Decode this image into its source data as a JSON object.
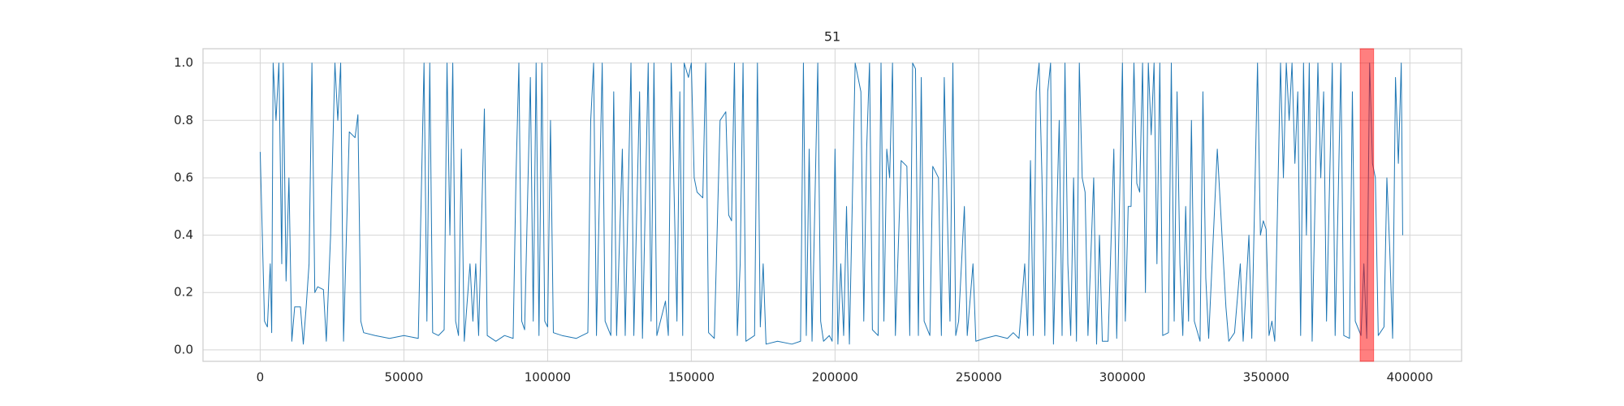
{
  "chart_data": {
    "type": "line",
    "title": "51",
    "x": [
      0,
      1500,
      2500,
      3500,
      4000,
      4500,
      5500,
      6500,
      7500,
      8000,
      9000,
      10000,
      11000,
      12000,
      14000,
      15000,
      16000,
      17000,
      18000,
      19000,
      20000,
      22000,
      23000,
      24500,
      26000,
      27000,
      28000,
      29000,
      30000,
      31000,
      33000,
      34000,
      35000,
      36000,
      40000,
      45000,
      50000,
      55000,
      57000,
      58000,
      59000,
      60000,
      62000,
      64000,
      65000,
      66000,
      67000,
      68000,
      69000,
      70000,
      71000,
      73000,
      74000,
      75000,
      76000,
      78000,
      79000,
      82000,
      85000,
      88000,
      89000,
      90000,
      91000,
      92000,
      94000,
      95000,
      96000,
      97000,
      98000,
      99000,
      100000,
      101000,
      102000,
      105000,
      110000,
      114000,
      115000,
      116000,
      117000,
      119000,
      120000,
      122000,
      123000,
      124000,
      126000,
      127000,
      129000,
      130000,
      132000,
      133000,
      135000,
      136000,
      137000,
      138000,
      141000,
      142000,
      143000,
      145000,
      146000,
      147000,
      147500,
      149000,
      150000,
      151000,
      152000,
      154000,
      155000,
      156000,
      158000,
      160000,
      162000,
      163000,
      164000,
      165000,
      166000,
      167000,
      168000,
      169000,
      172000,
      173000,
      174000,
      175000,
      176000,
      180000,
      185000,
      188000,
      189000,
      190000,
      191000,
      192000,
      194000,
      195000,
      196000,
      198000,
      199000,
      200000,
      201000,
      202000,
      203000,
      204000,
      205000,
      207000,
      209000,
      210000,
      211000,
      212000,
      213000,
      215000,
      216000,
      217000,
      218000,
      219000,
      220000,
      221000,
      223000,
      225000,
      226000,
      227000,
      228000,
      229000,
      230000,
      231000,
      233000,
      234000,
      236000,
      237000,
      238000,
      239000,
      240000,
      241000,
      242000,
      243000,
      245000,
      246000,
      248000,
      249000,
      252000,
      256000,
      260000,
      262000,
      264000,
      266000,
      267000,
      268000,
      269000,
      270000,
      271000,
      272000,
      273000,
      274000,
      275000,
      276000,
      278000,
      279000,
      280000,
      281000,
      282000,
      283000,
      284000,
      285000,
      286000,
      287000,
      288000,
      290000,
      291000,
      292000,
      293000,
      295000,
      297000,
      298000,
      300000,
      301000,
      302000,
      303000,
      304000,
      305000,
      306000,
      307000,
      308000,
      309000,
      310000,
      311000,
      312000,
      313000,
      314000,
      316000,
      317000,
      318000,
      319000,
      320000,
      321000,
      322000,
      323000,
      324000,
      325000,
      327000,
      328000,
      329000,
      330000,
      333000,
      336000,
      337000,
      339000,
      341000,
      342000,
      344000,
      345000,
      347000,
      348000,
      349000,
      350000,
      351000,
      352000,
      353000,
      355000,
      356000,
      357000,
      358000,
      359000,
      360000,
      361000,
      362000,
      363000,
      364000,
      365000,
      366000,
      368000,
      369000,
      370000,
      371000,
      373000,
      374000,
      375000,
      376000,
      377000,
      379000,
      380000,
      381000,
      383000,
      384000,
      385000,
      386000,
      387000,
      388000,
      389000,
      391000,
      392000,
      393000,
      394000,
      395000,
      396000,
      397000,
      397500
    ],
    "values": [
      0.69,
      0.1,
      0.08,
      0.3,
      0.06,
      1,
      0.8,
      1,
      0.3,
      1,
      0.24,
      0.6,
      0.03,
      0.15,
      0.15,
      0.02,
      0.15,
      0.3,
      1,
      0.2,
      0.22,
      0.21,
      0.03,
      0.4,
      1,
      0.8,
      1,
      0.03,
      0.4,
      0.76,
      0.74,
      0.82,
      0.1,
      0.06,
      0.05,
      0.04,
      0.05,
      0.04,
      1,
      0.1,
      1,
      0.06,
      0.05,
      0.07,
      1,
      0.4,
      1,
      0.1,
      0.05,
      0.7,
      0.03,
      0.3,
      0.1,
      0.3,
      0.05,
      0.84,
      0.05,
      0.03,
      0.05,
      0.04,
      0.6,
      1,
      0.1,
      0.07,
      0.95,
      0.1,
      1,
      0.05,
      1,
      0.1,
      0.08,
      0.8,
      0.06,
      0.05,
      0.04,
      0.06,
      0.8,
      1,
      0.05,
      1,
      0.1,
      0.05,
      0.9,
      0.05,
      0.7,
      0.05,
      1,
      0.05,
      0.9,
      0.04,
      1,
      0.1,
      1,
      0.05,
      0.17,
      0.05,
      1,
      0.1,
      0.9,
      0.05,
      1,
      0.95,
      1,
      0.6,
      0.55,
      0.53,
      1,
      0.06,
      0.04,
      0.8,
      0.83,
      0.47,
      0.45,
      1,
      0.05,
      0.3,
      1,
      0.03,
      0.05,
      1,
      0.08,
      0.3,
      0.02,
      0.03,
      0.02,
      0.03,
      1,
      0.05,
      0.7,
      0.03,
      1,
      0.1,
      0.03,
      0.05,
      0.03,
      0.7,
      0.02,
      0.3,
      0.05,
      0.5,
      0.02,
      1,
      0.9,
      0.1,
      0.7,
      1,
      0.07,
      0.05,
      1,
      0.1,
      0.7,
      0.6,
      1,
      0.05,
      0.66,
      0.64,
      0.05,
      1,
      0.98,
      0.05,
      0.95,
      0.1,
      0.05,
      0.64,
      0.6,
      0.05,
      0.95,
      0.5,
      0.1,
      1,
      0.05,
      0.1,
      0.5,
      0.05,
      0.3,
      0.03,
      0.04,
      0.05,
      0.04,
      0.06,
      0.04,
      0.3,
      0.05,
      0.66,
      0.05,
      0.9,
      1,
      0.6,
      0.05,
      0.9,
      1,
      0.02,
      0.8,
      0.05,
      1,
      0.3,
      0.05,
      0.6,
      0.03,
      1,
      0.6,
      0.55,
      0.05,
      0.6,
      0.02,
      0.4,
      0.03,
      0.03,
      0.7,
      0.04,
      1,
      0.1,
      0.5,
      0.5,
      1,
      0.58,
      0.55,
      1,
      0.2,
      1,
      0.75,
      1,
      0.3,
      1,
      0.05,
      0.06,
      1,
      0.1,
      0.9,
      0.3,
      0.05,
      0.5,
      0.1,
      0.8,
      0.1,
      0.03,
      0.9,
      0.25,
      0.04,
      0.7,
      0.15,
      0.03,
      0.06,
      0.3,
      0.03,
      0.4,
      0.04,
      1,
      0.4,
      0.45,
      0.42,
      0.05,
      0.1,
      0.03,
      1,
      0.6,
      1,
      0.8,
      1,
      0.65,
      0.9,
      0.05,
      1,
      0.4,
      1,
      0.03,
      1,
      0.6,
      0.9,
      0.1,
      1,
      0.05,
      0.5,
      1,
      0.05,
      0.04,
      0.9,
      0.1,
      0.05,
      0.3,
      0.04,
      1,
      0.65,
      0.6,
      0.05,
      0.08,
      0.6,
      0.35,
      0.04,
      0.95,
      0.65,
      1,
      0.4
    ],
    "color": "#1f77b4",
    "highlight": {
      "xmin": 382700,
      "xmax": 387400,
      "color": "#ff0000"
    },
    "xlim": [
      -19900,
      418000
    ],
    "xticks": [
      0,
      50000,
      100000,
      150000,
      200000,
      250000,
      300000,
      350000,
      400000
    ],
    "ylim": [
      -0.04,
      1.05
    ],
    "yticks": [
      {
        "value": 0,
        "label": "0.0"
      },
      {
        "value": 0.2,
        "label": "0.2"
      },
      {
        "value": 0.4,
        "label": "0.4"
      },
      {
        "value": 0.6,
        "label": "0.6"
      },
      {
        "value": 0.8,
        "label": "0.8"
      },
      {
        "value": 1,
        "label": "1.0"
      }
    ],
    "grid": true
  }
}
